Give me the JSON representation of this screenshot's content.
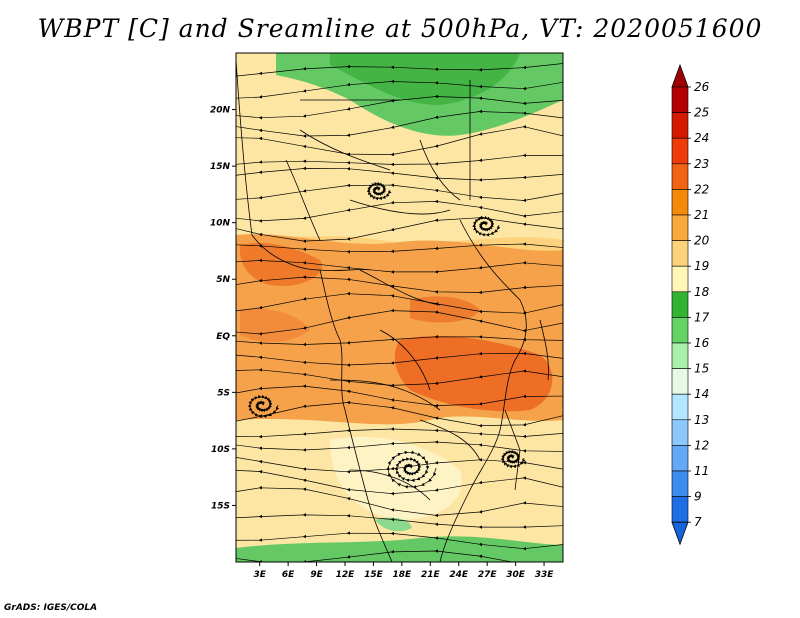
{
  "title": "WBPT [C] and Sreamline at 500hPa, VT: 2020051600",
  "footer": "GrADS: IGES/COLA",
  "map": {
    "lat_labels": [
      "20N",
      "15N",
      "10N",
      "5N",
      "EQ",
      "5S",
      "10S",
      "15S"
    ],
    "lat_values": [
      20,
      15,
      10,
      5,
      0,
      -5,
      -10,
      -15
    ],
    "lon_labels": [
      "3E",
      "6E",
      "9E",
      "12E",
      "15E",
      "18E",
      "21E",
      "24E",
      "27E",
      "30E",
      "33E"
    ],
    "lon_values": [
      3,
      6,
      9,
      12,
      15,
      18,
      21,
      24,
      27,
      30,
      33
    ],
    "lon_range": [
      0.5,
      35
    ],
    "lat_range": [
      -20,
      25
    ]
  },
  "colorbar": {
    "labels": [
      "26",
      "25",
      "24",
      "23",
      "22",
      "21",
      "20",
      "19",
      "18",
      "17",
      "16",
      "15",
      "14",
      "13",
      "12",
      "11",
      "9",
      "7"
    ],
    "colors": [
      "#b30000",
      "#d41a00",
      "#f03c0a",
      "#f06414",
      "#f58a0a",
      "#faaa3c",
      "#fcd27c",
      "#fff5b4",
      "#32b432",
      "#64d264",
      "#aaf0aa",
      "#e6fae6",
      "#b4e6ff",
      "#8cc8fa",
      "#64a8f5",
      "#3c8cf0",
      "#1e6ee6"
    ],
    "top_color": "#a00000",
    "bottom_color": "#1464dc"
  }
}
